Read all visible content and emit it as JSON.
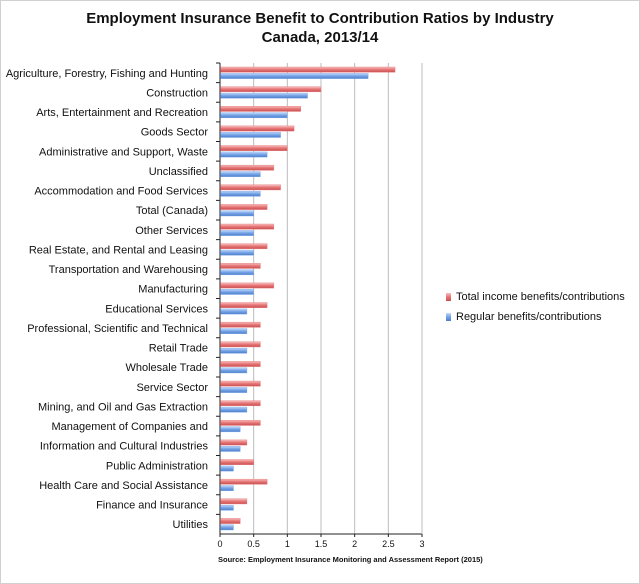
{
  "chart_data": {
    "type": "bar",
    "orientation": "horizontal",
    "title": "Employment Insurance Benefit to Contribution Ratios by Industry",
    "subtitle": "Canada, 2013/14",
    "source": "Source: Employment Insurance Monitoring and Assessment Report (2015)",
    "xlim": [
      0,
      3
    ],
    "xticks": [
      "0",
      "0.5",
      "1",
      "1.5",
      "2",
      "2.5",
      "3"
    ],
    "legend_position": "right",
    "categories": [
      "Agriculture, Forestry, Fishing and Hunting",
      "Construction",
      "Arts, Entertainment and Recreation",
      "Goods Sector",
      "Administrative and Support, Waste",
      "Unclassified",
      "Accommodation and Food Services",
      "Total (Canada)",
      "Other Services",
      "Real Estate, and Rental and Leasing",
      "Transportation and Warehousing",
      "Manufacturing",
      "Educational Services",
      "Professional, Scientific and Technical",
      "Retail Trade",
      "Wholesale Trade",
      "Service Sector",
      "Mining, and Oil and Gas Extraction",
      "Management of Companies and",
      "Information and Cultural Industries",
      "Public Administration",
      "Health Care and Social Assistance",
      "Finance and Insurance",
      "Utilities"
    ],
    "series": [
      {
        "name": "Total income benefits/contributions",
        "color": "#e8797a",
        "values": [
          2.6,
          1.5,
          1.2,
          1.1,
          1.0,
          0.8,
          0.9,
          0.7,
          0.8,
          0.7,
          0.6,
          0.8,
          0.7,
          0.6,
          0.6,
          0.6,
          0.6,
          0.6,
          0.6,
          0.4,
          0.5,
          0.7,
          0.4,
          0.3
        ]
      },
      {
        "name": "Regular benefits/contributions",
        "color": "#7aa6e8",
        "values": [
          2.2,
          1.3,
          1.0,
          0.9,
          0.7,
          0.6,
          0.6,
          0.5,
          0.5,
          0.5,
          0.5,
          0.5,
          0.4,
          0.4,
          0.4,
          0.4,
          0.4,
          0.4,
          0.3,
          0.3,
          0.2,
          0.2,
          0.2,
          0.2
        ]
      }
    ]
  }
}
